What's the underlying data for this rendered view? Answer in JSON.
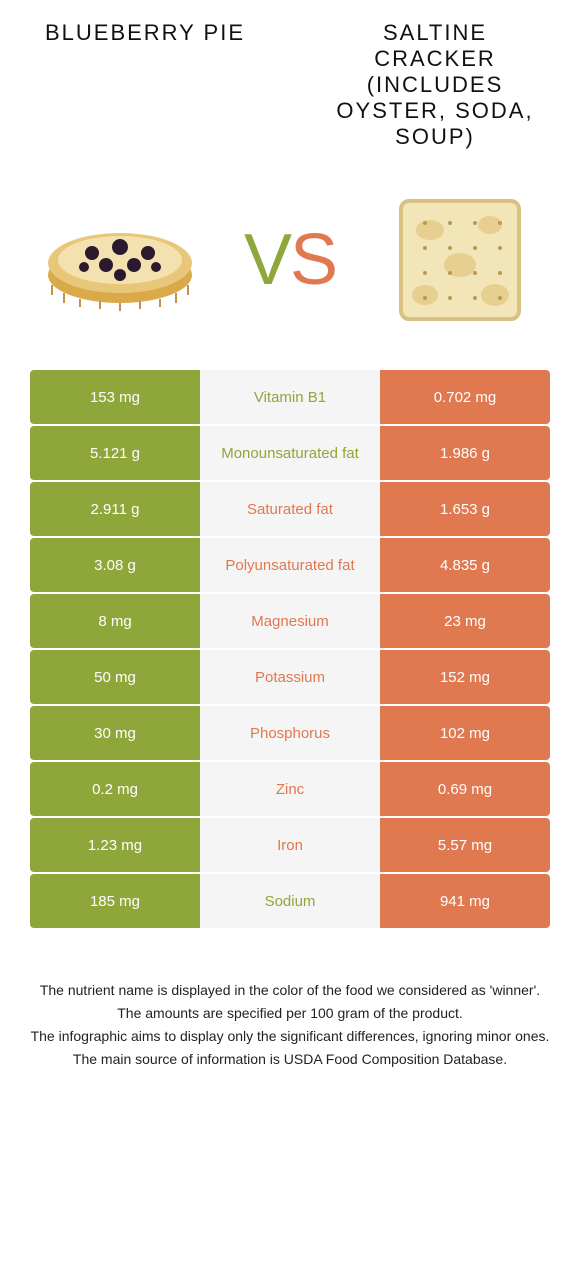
{
  "food_a": {
    "title": "Blueberry pie",
    "color": "#8fa63a"
  },
  "food_b": {
    "title": "Saltine cracker (includes oyster, soda, soup)",
    "color": "#e07850"
  },
  "vs_label": {
    "v": "V",
    "s": "S"
  },
  "colors": {
    "green": "#8fa63a",
    "orange": "#e07850",
    "row_bg": "#f5f5f5",
    "page_bg": "#ffffff"
  },
  "rows": [
    {
      "left": "153 mg",
      "label": "Vitamin B1",
      "right": "0.702 mg",
      "winner": "green"
    },
    {
      "left": "5.121 g",
      "label": "Monounsaturated fat",
      "right": "1.986 g",
      "winner": "green"
    },
    {
      "left": "2.911 g",
      "label": "Saturated fat",
      "right": "1.653 g",
      "winner": "orange"
    },
    {
      "left": "3.08 g",
      "label": "Polyunsaturated fat",
      "right": "4.835 g",
      "winner": "orange"
    },
    {
      "left": "8 mg",
      "label": "Magnesium",
      "right": "23 mg",
      "winner": "orange"
    },
    {
      "left": "50 mg",
      "label": "Potassium",
      "right": "152 mg",
      "winner": "orange"
    },
    {
      "left": "30 mg",
      "label": "Phosphorus",
      "right": "102 mg",
      "winner": "orange"
    },
    {
      "left": "0.2 mg",
      "label": "Zinc",
      "right": "0.69 mg",
      "winner": "orange"
    },
    {
      "left": "1.23 mg",
      "label": "Iron",
      "right": "5.57 mg",
      "winner": "orange"
    },
    {
      "left": "185 mg",
      "label": "Sodium",
      "right": "941 mg",
      "winner": "green"
    }
  ],
  "notes": {
    "l1": "The nutrient name is displayed in the color of the food we considered as 'winner'.",
    "l2": "The amounts are specified per 100 gram of the product.",
    "l3": "The infographic aims to display only the significant differences, ignoring minor ones.",
    "l4": "The main source of information is USDA Food Composition Database."
  }
}
